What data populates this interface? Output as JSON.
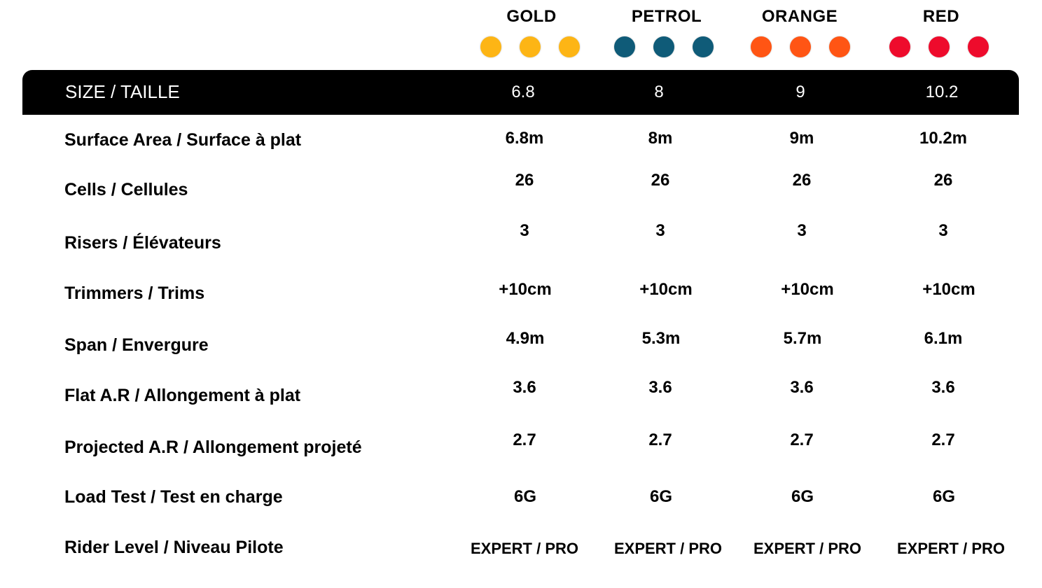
{
  "colors": [
    {
      "name": "GOLD",
      "hex": "#FDB515"
    },
    {
      "name": "PETROL",
      "hex": "#0F5B78"
    },
    {
      "name": "ORANGE",
      "hex": "#FF5514"
    },
    {
      "name": "RED",
      "hex": "#EE0B2C"
    }
  ],
  "header": {
    "size_label": "SIZE / TAILLE",
    "sizes": [
      "6.8",
      "8",
      "9",
      "10.2"
    ]
  },
  "rows": [
    {
      "label": "Surface Area / Surface à plat",
      "values": [
        "6.8m",
        "8m",
        "9m",
        "10.2m"
      ]
    },
    {
      "label": "Cells / Cellules",
      "values": [
        "26",
        "26",
        "26",
        "26"
      ]
    },
    {
      "label": "Risers / Élévateurs",
      "values": [
        "3",
        "3",
        "3",
        "3"
      ]
    },
    {
      "label": "Trimmers / Trims",
      "values": [
        "+10cm",
        "+10cm",
        "+10cm",
        "+10cm"
      ]
    },
    {
      "label": "Span / Envergure",
      "values": [
        "4.9m",
        "5.3m",
        "5.7m",
        "6.1m"
      ]
    },
    {
      "label": "Flat A.R / Allongement à plat",
      "values": [
        "3.6",
        "3.6",
        "3.6",
        "3.6"
      ]
    },
    {
      "label": "Projected A.R / Allongement projeté",
      "values": [
        "2.7",
        "2.7",
        "2.7",
        "2.7"
      ]
    },
    {
      "label": "Load Test / Test en charge",
      "values": [
        "6G",
        "6G",
        "6G",
        "6G"
      ]
    },
    {
      "label": "Rider Level / Niveau Pilote",
      "values": [
        "EXPERT / PRO",
        "EXPERT / PRO",
        "EXPERT / PRO",
        "EXPERT / PRO"
      ]
    }
  ]
}
